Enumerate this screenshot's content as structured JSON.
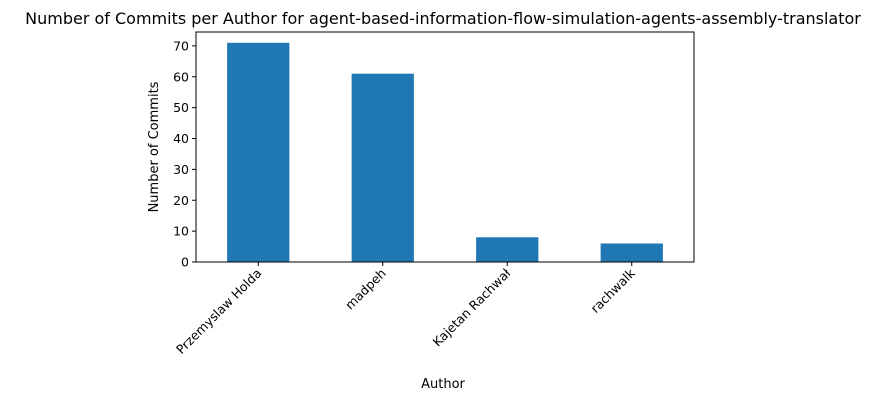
{
  "chart_data": {
    "type": "bar",
    "title": "Number of Commits per Author for agent-based-information-flow-simulation-agents-assembly-translator",
    "xlabel": "Author",
    "ylabel": "Number of Commits",
    "categories": [
      "Przemyslaw Holda",
      "madpeh",
      "Kajetan Rachwał",
      "rachwalk"
    ],
    "values": [
      71,
      61,
      8,
      6
    ],
    "ylim": [
      0,
      74.5
    ],
    "yticks": [
      0,
      10,
      20,
      30,
      40,
      50,
      60,
      70
    ],
    "bar_color": "#1f77b4",
    "grid": false,
    "legend": "none"
  }
}
